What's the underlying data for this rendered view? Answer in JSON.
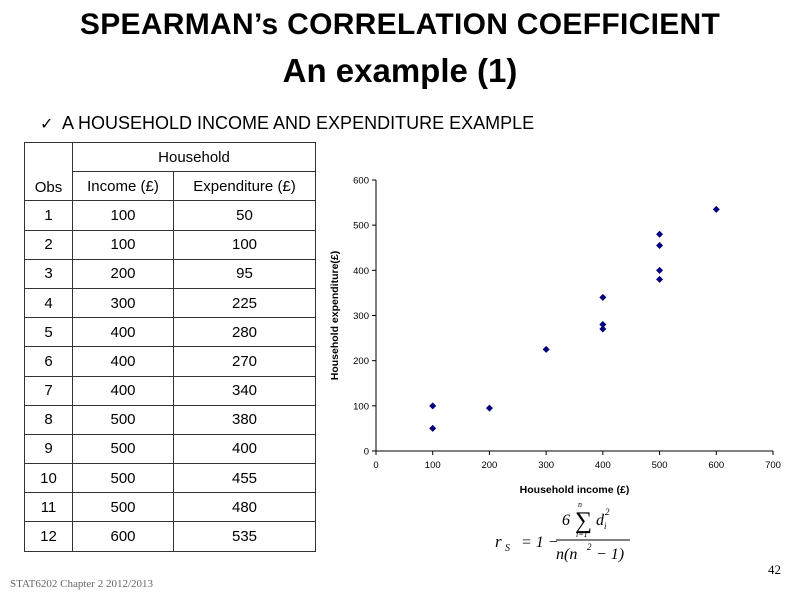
{
  "title": {
    "line1": "SPEARMAN’s CORRELATION COEFFICIENT",
    "line2": "An example (1)"
  },
  "bullet": {
    "icon": "check-icon",
    "text": "A HOUSEHOLD INCOME AND EXPENDITURE EXAMPLE"
  },
  "table": {
    "group_header": "Household",
    "headers": [
      "Obs",
      "Income (£)",
      "Expenditure (£)"
    ],
    "rows": [
      [
        "1",
        "100",
        "50"
      ],
      [
        "2",
        "100",
        "100"
      ],
      [
        "3",
        "200",
        "95"
      ],
      [
        "4",
        "300",
        "225"
      ],
      [
        "5",
        "400",
        "280"
      ],
      [
        "6",
        "400",
        "270"
      ],
      [
        "7",
        "400",
        "340"
      ],
      [
        "8",
        "500",
        "380"
      ],
      [
        "9",
        "500",
        "400"
      ],
      [
        "10",
        "500",
        "455"
      ],
      [
        "11",
        "500",
        "480"
      ],
      [
        "12",
        "600",
        "535"
      ]
    ]
  },
  "chart_data": {
    "type": "scatter",
    "xlabel": "Household income (£)",
    "ylabel": "Household expenditure(£)",
    "xlim": [
      0,
      700
    ],
    "ylim": [
      0,
      600
    ],
    "xticks": [
      0,
      100,
      200,
      300,
      400,
      500,
      600,
      700
    ],
    "yticks": [
      0,
      100,
      200,
      300,
      400,
      500,
      600
    ],
    "grid": false,
    "marker_color": "#000080",
    "points": [
      [
        100,
        50
      ],
      [
        100,
        100
      ],
      [
        200,
        95
      ],
      [
        300,
        225
      ],
      [
        400,
        280
      ],
      [
        400,
        270
      ],
      [
        400,
        340
      ],
      [
        500,
        380
      ],
      [
        500,
        400
      ],
      [
        500,
        455
      ],
      [
        500,
        480
      ],
      [
        600,
        535
      ]
    ]
  },
  "formula": {
    "r": "r",
    "r_sub": "S",
    "equals_one_minus": "= 1 −",
    "six": "6",
    "sum_top": "n",
    "sum_bottom": "i=1",
    "d": "d",
    "d_sub": "i",
    "d_sup": "2",
    "denominator": "n(n",
    "denominator_sup": "2",
    "denominator_end": "− 1)"
  },
  "footer": "STAT6202 Chapter 2 2012/2013",
  "page_number": "42"
}
